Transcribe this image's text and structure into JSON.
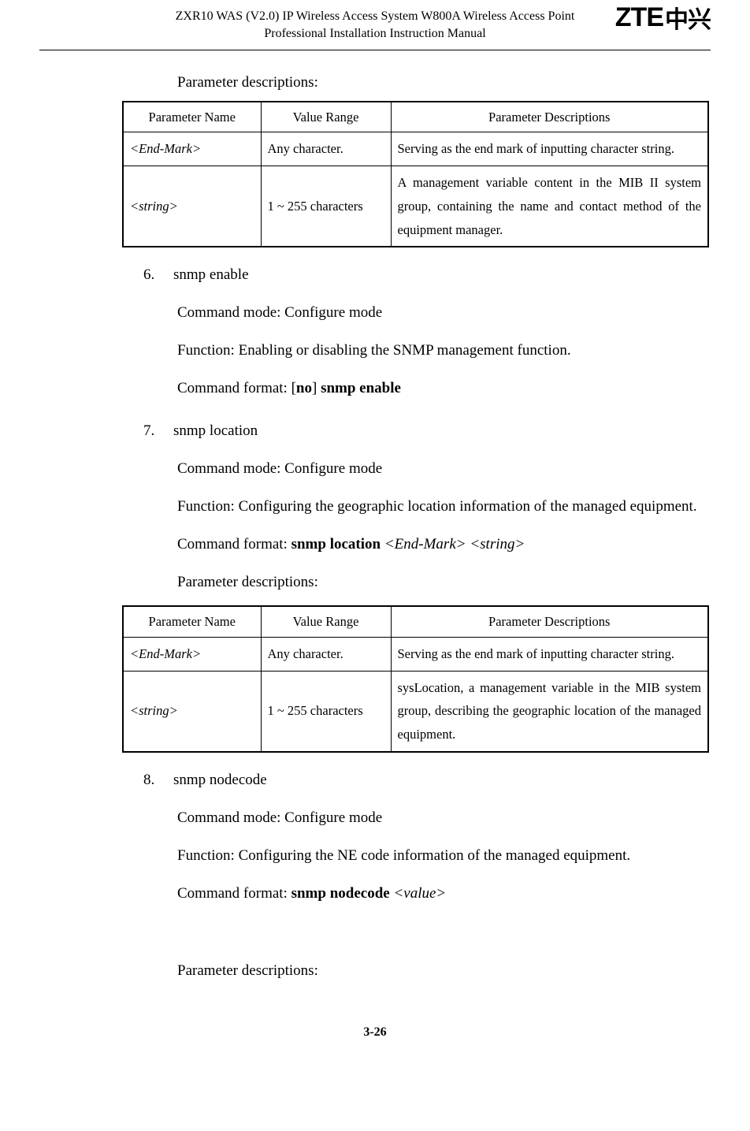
{
  "header": {
    "title_line1": "ZXR10 WAS (V2.0) IP Wireless Access System W800A Wireless Access Point",
    "title_line2": "Professional Installation Instruction Manual",
    "logo_text": "ZTE",
    "logo_cn": "中兴"
  },
  "intro_label": "Parameter descriptions:",
  "table1": {
    "headers": [
      "Parameter Name",
      "Value Range",
      "Parameter Descriptions"
    ],
    "rows": [
      {
        "name": "<End-Mark>",
        "range": "Any character.",
        "desc": "Serving as the end mark of inputting character string."
      },
      {
        "name": "<string>",
        "range": "1 ~ 255 characters",
        "desc": "A management variable content in the MIB II system group, containing the name and contact method of the equipment manager."
      }
    ]
  },
  "item6": {
    "num": "6.",
    "title": "snmp enable",
    "mode_label": "Command mode: Configure mode",
    "function": "Function: Enabling or disabling the SNMP management function.",
    "format_prefix": "Command format: [",
    "format_no": "no",
    "format_mid": "] ",
    "format_cmd": "snmp enable"
  },
  "item7": {
    "num": "7.",
    "title": "snmp location",
    "mode_label": "Command mode: Configure mode",
    "function": "Function: Configuring the geographic location information of the managed equipment.",
    "format_prefix": "Command format: ",
    "format_cmd": "snmp location",
    "format_arg1": " <End-Mark>",
    "format_arg2": " <string>",
    "param_label": "Parameter descriptions:"
  },
  "table2": {
    "headers": [
      "Parameter Name",
      "Value Range",
      "Parameter Descriptions"
    ],
    "rows": [
      {
        "name": "<End-Mark>",
        "range": "Any character.",
        "desc": "Serving as the end mark of inputting character string."
      },
      {
        "name": "<string>",
        "range": "1 ~ 255 characters",
        "desc": "sysLocation, a management variable in the MIB system group, describing the geographic location of the managed equipment."
      }
    ]
  },
  "item8": {
    "num": "8.",
    "title": "snmp nodecode",
    "mode_label": "Command mode: Configure mode",
    "function": "Function: Configuring the NE code information of the managed equipment.",
    "format_prefix": "Command format: ",
    "format_cmd": "snmp nodecode",
    "format_arg": "  <value>",
    "param_label": "Parameter descriptions:"
  },
  "footer": "3-26"
}
